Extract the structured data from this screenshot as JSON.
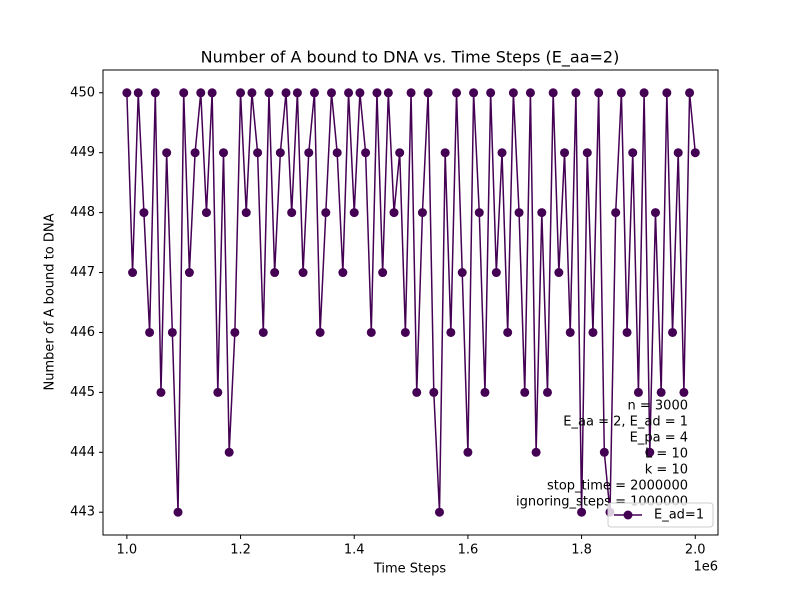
{
  "chart_data": {
    "type": "line",
    "title": "Number of A bound to DNA vs. Time Steps (E_aa=2)",
    "x_label": "Time Steps",
    "y_label": "Number of A bound to DNA",
    "x_offset_label": "1e6",
    "annotation": [
      "n = 3000",
      "E_aa = 2, E_ad = 1",
      "E_pa = 4",
      "L = 10",
      "k = 10",
      "stop_time = 2000000",
      "ignoring_steps = 1000000"
    ],
    "legend_position": "lower right",
    "x": [
      1000000,
      1010000,
      1020000,
      1030000,
      1040000,
      1050000,
      1060000,
      1070000,
      1080000,
      1090000,
      1100000,
      1110000,
      1120000,
      1130000,
      1140000,
      1150000,
      1160000,
      1170000,
      1180000,
      1190000,
      1200000,
      1210000,
      1220000,
      1230000,
      1240000,
      1250000,
      1260000,
      1270000,
      1280000,
      1290000,
      1300000,
      1310000,
      1320000,
      1330000,
      1340000,
      1350000,
      1360000,
      1370000,
      1380000,
      1390000,
      1400000,
      1410000,
      1420000,
      1430000,
      1440000,
      1450000,
      1460000,
      1470000,
      1480000,
      1490000,
      1500000,
      1510000,
      1520000,
      1530000,
      1540000,
      1550000,
      1560000,
      1570000,
      1580000,
      1590000,
      1600000,
      1610000,
      1620000,
      1630000,
      1640000,
      1650000,
      1660000,
      1670000,
      1680000,
      1690000,
      1700000,
      1710000,
      1720000,
      1730000,
      1740000,
      1750000,
      1760000,
      1770000,
      1780000,
      1790000,
      1800000,
      1810000,
      1820000,
      1830000,
      1840000,
      1850000,
      1860000,
      1870000,
      1880000,
      1890000,
      1900000,
      1910000,
      1920000,
      1930000,
      1940000,
      1950000,
      1960000,
      1970000,
      1980000,
      1990000,
      2000000
    ],
    "series": [
      {
        "name": "E_ad=1",
        "color": "#440154",
        "values": [
          450,
          447,
          450,
          448,
          446,
          450,
          445,
          449,
          446,
          443,
          450,
          447,
          449,
          450,
          448,
          450,
          445,
          449,
          444,
          446,
          450,
          448,
          450,
          449,
          446,
          450,
          447,
          449,
          450,
          448,
          450,
          447,
          449,
          450,
          446,
          448,
          450,
          449,
          447,
          450,
          448,
          450,
          449,
          446,
          450,
          447,
          450,
          448,
          449,
          446,
          450,
          445,
          448,
          450,
          445,
          443,
          449,
          446,
          450,
          447,
          444,
          450,
          448,
          445,
          450,
          447,
          449,
          446,
          450,
          448,
          445,
          450,
          444,
          448,
          445,
          450,
          447,
          449,
          446,
          450,
          443,
          449,
          446,
          450,
          444,
          443,
          448,
          450,
          446,
          449,
          445,
          450,
          444,
          448,
          445,
          450,
          446,
          449,
          445,
          450,
          449
        ]
      }
    ],
    "xlim": [
      958000,
      2040000
    ],
    "ylim": [
      442.62,
      450.38
    ],
    "xticks": [
      {
        "value": 1000000,
        "label": "1.0"
      },
      {
        "value": 1200000,
        "label": "1.2"
      },
      {
        "value": 1400000,
        "label": "1.4"
      },
      {
        "value": 1600000,
        "label": "1.6"
      },
      {
        "value": 1800000,
        "label": "1.8"
      },
      {
        "value": 2000000,
        "label": "2.0"
      }
    ],
    "yticks": [
      443,
      444,
      445,
      446,
      447,
      448,
      449,
      450
    ]
  }
}
